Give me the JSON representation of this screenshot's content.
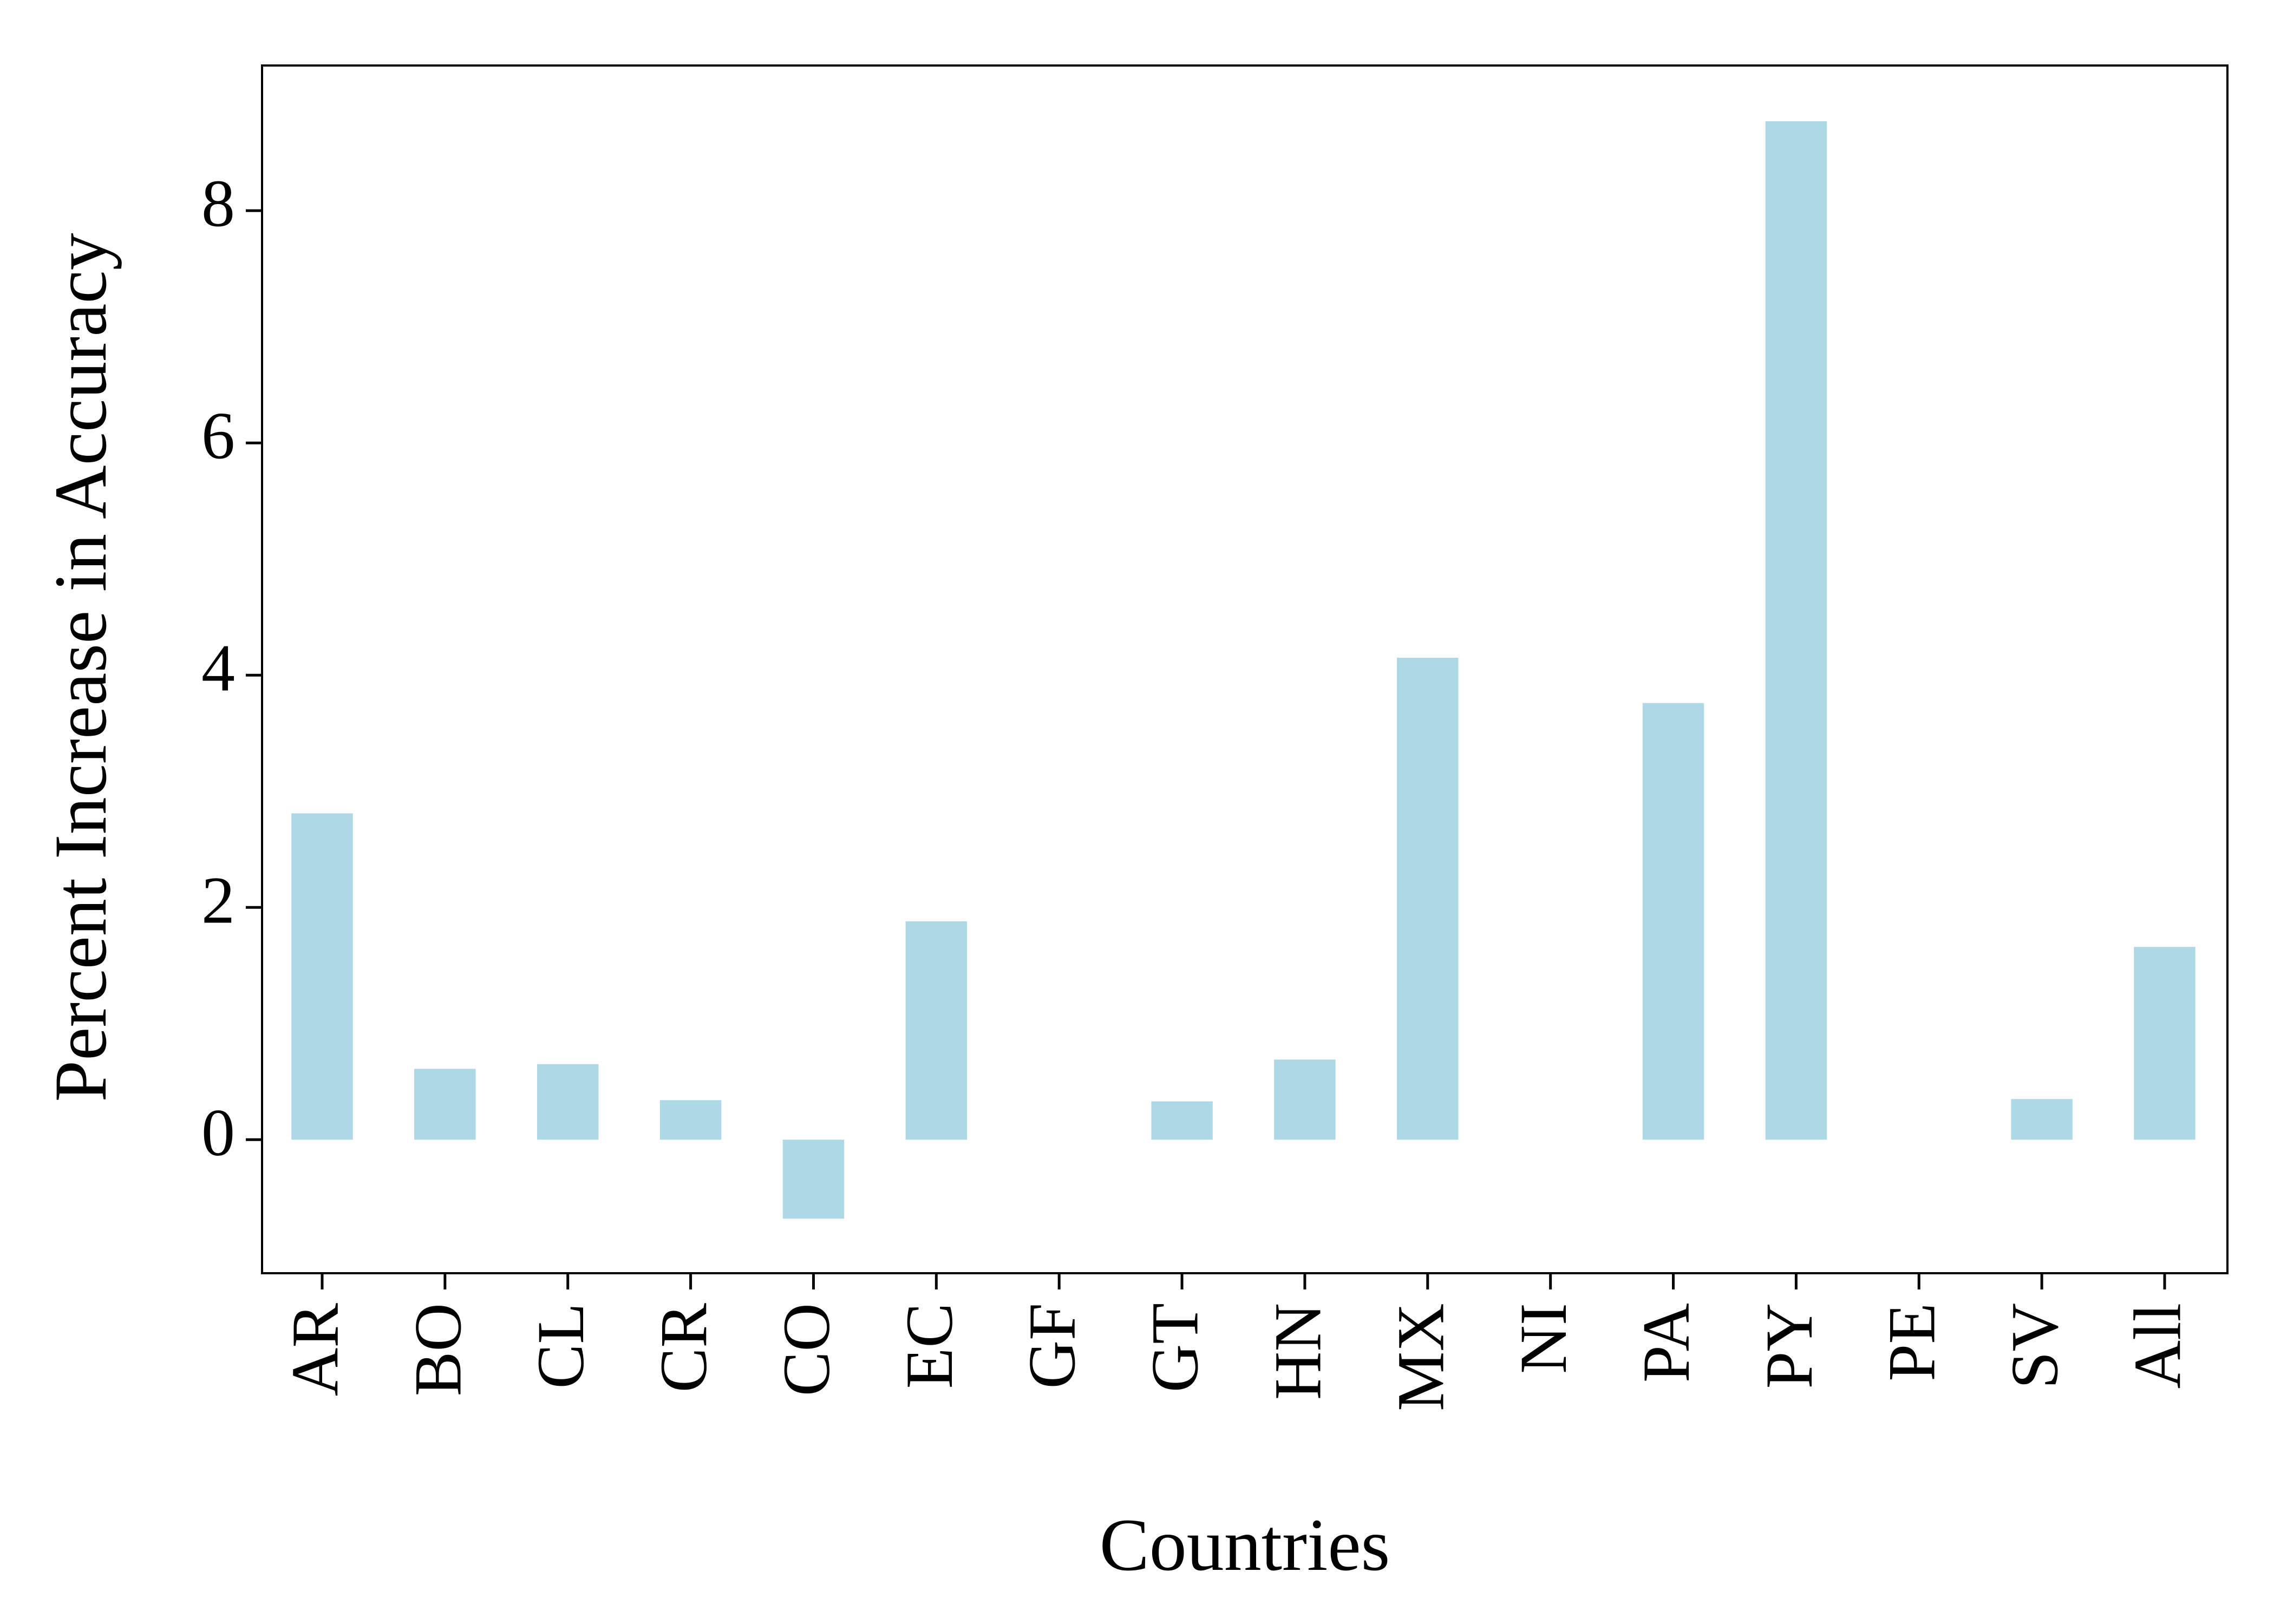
{
  "chart_data": {
    "type": "bar",
    "categories": [
      "AR",
      "BO",
      "CL",
      "CR",
      "CO",
      "EC",
      "GF",
      "GT",
      "HN",
      "MX",
      "NI",
      "PA",
      "PY",
      "PE",
      "SV",
      "All"
    ],
    "values": [
      2.81,
      0.61,
      0.65,
      0.34,
      -0.68,
      1.88,
      0.0,
      0.33,
      0.69,
      4.15,
      0.0,
      3.76,
      8.77,
      0.0,
      0.35,
      1.66
    ],
    "title": "",
    "xlabel": "Countries",
    "ylabel": "Percent Increase in Accuracy",
    "ylim": [
      -1.15,
      9.25
    ],
    "yticks": [
      0,
      2,
      4,
      6,
      8
    ],
    "grid": false,
    "bar_color": "#add8e6"
  }
}
